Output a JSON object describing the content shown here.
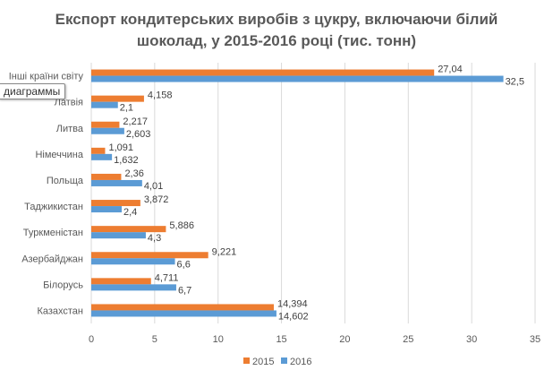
{
  "chart_data": {
    "type": "bar",
    "orientation": "horizontal",
    "title_line1": "Експорт кондитерських виробів з цукру, включаючи білий",
    "title_line2": "шоколад, у 2015-2016 році (тис. тонн)",
    "categories": [
      "Інші країни світу",
      "Латвія",
      "Литва",
      "Німеччина",
      "Польща",
      "Таджикистан",
      "Туркменістан",
      "Азербайджан",
      "Білорусь",
      "Казахстан"
    ],
    "series": [
      {
        "name": "2015",
        "color": "#ED7D31",
        "values": [
          27.04,
          4.158,
          2.217,
          1.091,
          2.36,
          3.872,
          5.886,
          9.221,
          4.711,
          14.394
        ],
        "labels": [
          "27,04",
          "4,158",
          "2,217",
          "1,091",
          "2,36",
          "3,872",
          "5,886",
          "9,221",
          "4,711",
          "14,394"
        ]
      },
      {
        "name": "2016",
        "color": "#5B9BD5",
        "values": [
          32.5,
          2.1,
          2.603,
          1.632,
          4.01,
          2.4,
          4.3,
          6.6,
          6.7,
          14.602
        ],
        "labels": [
          "32,5",
          "2,1",
          "2,603",
          "1,632",
          "4,01",
          "2,4",
          "4,3",
          "6,6",
          "6,7",
          "14,602"
        ]
      }
    ],
    "xlim": [
      0,
      35
    ],
    "xticks": [
      0,
      5,
      10,
      15,
      20,
      25,
      30,
      35
    ],
    "grid": true,
    "legend_placement": "bottom"
  },
  "tooltip": "диаграммы"
}
